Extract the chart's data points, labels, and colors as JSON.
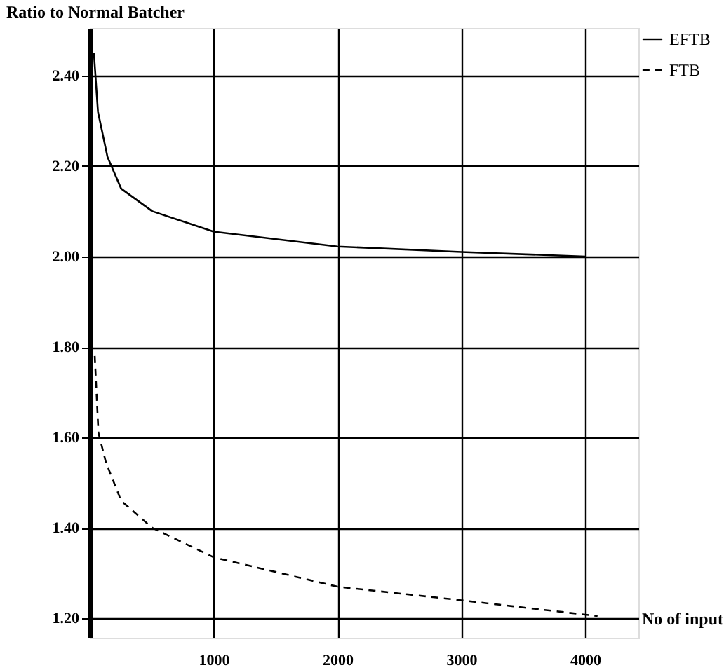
{
  "chart_data": {
    "type": "line",
    "ylabel": "Ratio to Normal Batcher",
    "xlabel": "No of input",
    "xlim": [
      0,
      4430
    ],
    "xticks": [
      1000,
      2000,
      3000,
      4000
    ],
    "ylim": [
      1.157,
      2.505
    ],
    "yticks": [
      {
        "value": 1.2,
        "label": "1.20"
      },
      {
        "value": 1.4,
        "label": "1.40"
      },
      {
        "value": 1.6,
        "label": "1.60"
      },
      {
        "value": 1.8,
        "label": "1.80"
      },
      {
        "value": 2.0,
        "label": "2.00"
      },
      {
        "value": 2.2,
        "label": "2.20"
      },
      {
        "value": 2.4,
        "label": "2.40"
      }
    ],
    "grid": true,
    "legend": "top right",
    "marker": "none",
    "series": [
      {
        "name": "EFTB",
        "color": "#000000",
        "line_style": "solid",
        "x": [
          33,
          66,
          143,
          253,
          505,
          1000,
          2000,
          3000,
          4000
        ],
        "values": [
          2.45,
          2.32,
          2.22,
          2.15,
          2.1,
          2.055,
          2.022,
          2.01,
          2.0
        ]
      },
      {
        "name": "FTB",
        "color": "#000000",
        "line_style": "dashed",
        "x": [
          40,
          70,
          130,
          253,
          505,
          1000,
          2000,
          3000,
          4100
        ],
        "values": [
          1.78,
          1.61,
          1.545,
          1.46,
          1.4,
          1.335,
          1.27,
          1.24,
          1.205
        ]
      }
    ]
  }
}
